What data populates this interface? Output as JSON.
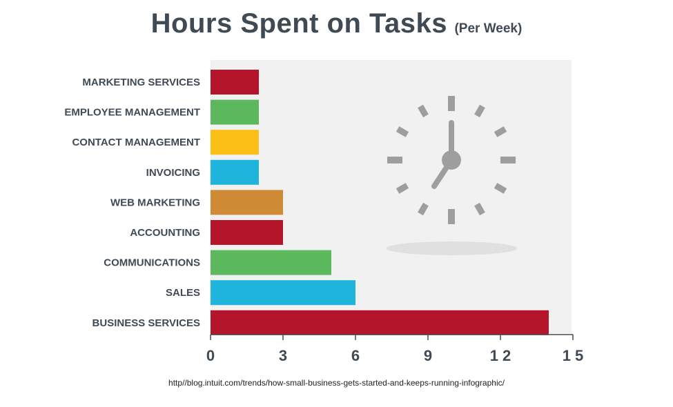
{
  "title": "Hours Spent on Tasks",
  "subtitle": "(Per Week)",
  "source": "http//blog.intuit.com/trends/how-small-business-gets-started-and-keeps-running-infographic/",
  "chart_data": {
    "type": "bar",
    "orientation": "horizontal",
    "categories": [
      "MARKETING SERVICES",
      "EMPLOYEE MANAGEMENT",
      "CONTACT MANAGEMENT",
      "INVOICING",
      "WEB MARKETING",
      "ACCOUNTING",
      "COMMUNICATIONS",
      "SALES",
      "BUSINESS SERVICES"
    ],
    "values": [
      2,
      2,
      2,
      2,
      3,
      3,
      5,
      6,
      14
    ],
    "colors": [
      "#b5152b",
      "#5cb85c",
      "#fbbf17",
      "#1eb4dc",
      "#cf8a36",
      "#b5152b",
      "#5cb85c",
      "#1eb4dc",
      "#b5152b"
    ],
    "xlim": [
      0,
      15
    ],
    "xticks": [
      "0",
      "3",
      "6",
      "9",
      "1 2",
      "1 5"
    ],
    "grid": false,
    "background_color": "#f1f1f1",
    "decoration": "clock-icon"
  }
}
